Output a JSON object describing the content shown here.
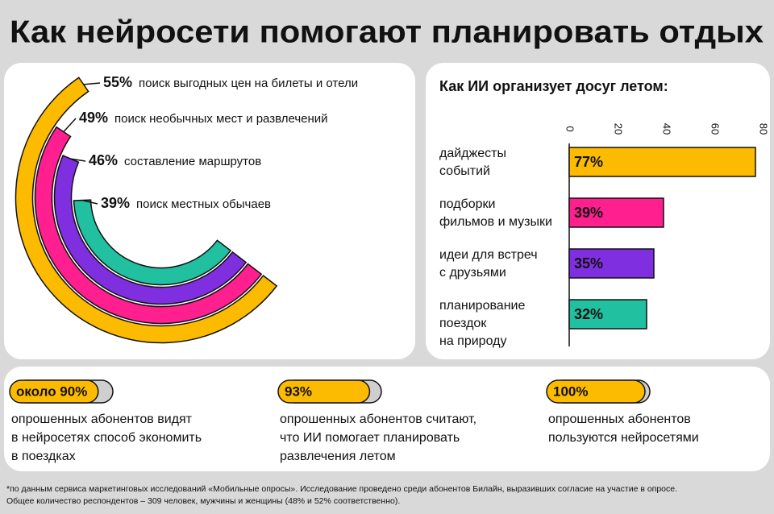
{
  "title": "Как нейросети помогают планировать отдых",
  "chart_data": [
    {
      "type": "radial_bar",
      "categories": [
        "поиск выгодных цен на билеты и отели",
        "поиск необычных мест и развлечений",
        "составление маршрутов",
        "поиск местных обычаев"
      ],
      "values": [
        55,
        49,
        46,
        39
      ],
      "value_labels": [
        "55%",
        "49%",
        "46%",
        "39%"
      ],
      "colors": [
        "#fdbb00",
        "#ff1f8e",
        "#7f2fe0",
        "#20c0a0"
      ]
    },
    {
      "type": "hbar",
      "title": "Как ИИ организует досуг летом:",
      "categories": [
        [
          "дайджесты",
          "событий"
        ],
        [
          "подборки",
          "фильмов и музыки"
        ],
        [
          "идеи для встреч",
          "с друзьями"
        ],
        [
          "планирование",
          "поездок",
          "на природу"
        ]
      ],
      "values": [
        77,
        39,
        35,
        32
      ],
      "value_labels": [
        "77%",
        "39%",
        "35%",
        "32%"
      ],
      "colors": [
        "#fdbb00",
        "#ff1f8e",
        "#7f2fe0",
        "#20c0a0"
      ],
      "xlim": [
        0,
        80
      ],
      "xticks": [
        0,
        20,
        40,
        60,
        80
      ]
    }
  ],
  "stats": [
    {
      "value": 90,
      "label": "около 90%",
      "text": [
        "опрошенных абонентов видят",
        "в нейросетях способ экономить",
        "в поездках"
      ]
    },
    {
      "value": 93,
      "label": "93%",
      "text": [
        "опрошенных абонентов считают,",
        "что ИИ помогает планировать",
        "развлечения летом"
      ]
    },
    {
      "value": 100,
      "label": "100%",
      "text": [
        "опрошенных абонентов",
        "пользуются нейросетями"
      ]
    }
  ],
  "footnote": [
    "*по данным сервиса маркетинговых исследований «Мобильные опросы». Исследование проведено среди абонентов Билайн, выразивших согласие на участие в опросе.",
    "Общее количество респондентов – 309 человек, мужчины и женщины (48% и 52% соответственно)."
  ]
}
